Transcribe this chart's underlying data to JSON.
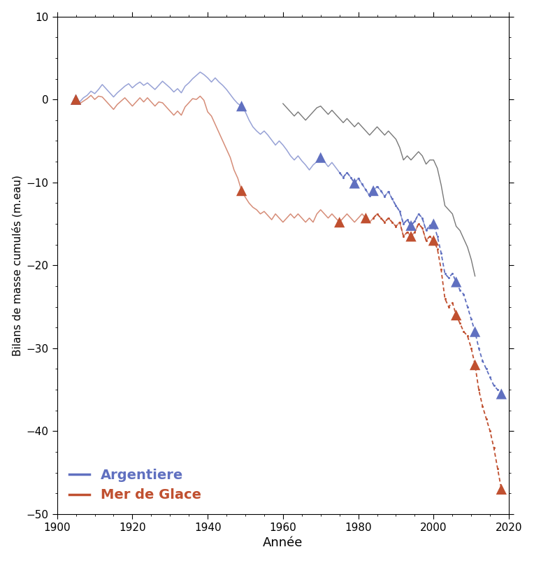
{
  "xlabel": "Année",
  "ylabel": "Bilans de masse cumulés (m.eau)",
  "xlim": [
    1900,
    2020
  ],
  "ylim": [
    -50,
    10
  ],
  "yticks": [
    10,
    0,
    -10,
    -20,
    -30,
    -40,
    -50
  ],
  "xticks": [
    1900,
    1920,
    1940,
    1960,
    1980,
    2000,
    2020
  ],
  "arg_color": "#6070c0",
  "mer_color": "#c05030",
  "gray_color": "#606060",
  "legend_argentiere": "Argentiere",
  "legend_mer": "Mer de Glace",
  "arg_solid_x": [
    1905,
    1906,
    1907,
    1908,
    1909,
    1910,
    1911,
    1912,
    1913,
    1914,
    1915,
    1916,
    1917,
    1918,
    1919,
    1920,
    1921,
    1922,
    1923,
    1924,
    1925,
    1926,
    1927,
    1928,
    1929,
    1930,
    1931,
    1932,
    1933,
    1934,
    1935,
    1936,
    1937,
    1938,
    1939,
    1940,
    1941,
    1942,
    1943,
    1944,
    1945,
    1946,
    1947,
    1948,
    1949,
    1950,
    1951,
    1952,
    1953,
    1954,
    1955,
    1956,
    1957,
    1958,
    1959,
    1960,
    1961,
    1962,
    1963,
    1964,
    1965,
    1966,
    1967,
    1968,
    1969,
    1970,
    1971,
    1972,
    1973,
    1974,
    1975,
    1976,
    1977,
    1978,
    1979,
    1980,
    1981,
    1982,
    1983,
    1984,
    1985,
    1986,
    1987,
    1988,
    1989,
    1990,
    1991,
    1992,
    1993,
    1994,
    1995,
    1996,
    1997,
    1998,
    1999,
    2000
  ],
  "arg_solid_y": [
    0.0,
    -0.3,
    0.2,
    0.5,
    1.0,
    0.7,
    1.2,
    1.8,
    1.3,
    0.8,
    0.3,
    0.8,
    1.2,
    1.6,
    1.9,
    1.4,
    1.8,
    2.1,
    1.7,
    2.0,
    1.6,
    1.2,
    1.7,
    2.2,
    1.8,
    1.4,
    0.9,
    1.3,
    0.8,
    1.6,
    2.0,
    2.5,
    2.9,
    3.3,
    3.0,
    2.6,
    2.1,
    2.6,
    2.1,
    1.7,
    1.2,
    0.6,
    0.0,
    -0.5,
    -0.8,
    -1.5,
    -2.5,
    -3.3,
    -3.8,
    -4.2,
    -3.8,
    -4.3,
    -4.9,
    -5.5,
    -5.0,
    -5.5,
    -6.1,
    -6.8,
    -7.3,
    -6.8,
    -7.4,
    -7.9,
    -8.5,
    -7.9,
    -7.5,
    -7.0,
    -7.5,
    -8.1,
    -7.6,
    -8.2,
    -8.8,
    -9.4,
    -8.8,
    -9.4,
    -10.1,
    -9.5,
    -10.2,
    -10.9,
    -11.6,
    -11.0,
    -10.5,
    -11.0,
    -11.7,
    -11.1,
    -12.0,
    -12.8,
    -13.5,
    -15.0,
    -14.5,
    -15.2,
    -14.7,
    -13.8,
    -14.3,
    -15.8,
    -15.2,
    -15.0
  ],
  "mer_solid_x": [
    1905,
    1906,
    1907,
    1908,
    1909,
    1910,
    1911,
    1912,
    1913,
    1914,
    1915,
    1916,
    1917,
    1918,
    1919,
    1920,
    1921,
    1922,
    1923,
    1924,
    1925,
    1926,
    1927,
    1928,
    1929,
    1930,
    1931,
    1932,
    1933,
    1934,
    1935,
    1936,
    1937,
    1938,
    1939,
    1940,
    1941,
    1942,
    1943,
    1944,
    1945,
    1946,
    1947,
    1948,
    1949,
    1950,
    1951,
    1952,
    1953,
    1954,
    1955,
    1956,
    1957,
    1958,
    1959,
    1960,
    1961,
    1962,
    1963,
    1964,
    1965,
    1966,
    1967,
    1968,
    1969,
    1970,
    1971,
    1972,
    1973,
    1974,
    1975,
    1976,
    1977,
    1978,
    1979,
    1980,
    1981,
    1982,
    1983,
    1984,
    1985,
    1986,
    1987,
    1988,
    1989,
    1990,
    1991,
    1992,
    1993,
    1994,
    1995,
    1996,
    1997,
    1998,
    1999,
    2000
  ],
  "mer_solid_y": [
    0.0,
    -0.5,
    -0.2,
    0.1,
    0.5,
    0.0,
    0.4,
    0.3,
    -0.2,
    -0.7,
    -1.2,
    -0.6,
    -0.2,
    0.2,
    -0.3,
    -0.8,
    -0.3,
    0.2,
    -0.3,
    0.2,
    -0.3,
    -0.8,
    -0.3,
    -0.4,
    -0.9,
    -1.4,
    -1.9,
    -1.4,
    -1.9,
    -0.9,
    -0.4,
    0.1,
    0.0,
    0.4,
    -0.1,
    -1.5,
    -2.0,
    -3.0,
    -4.0,
    -5.0,
    -6.0,
    -7.0,
    -8.5,
    -9.5,
    -11.0,
    -11.8,
    -12.5,
    -13.0,
    -13.3,
    -13.8,
    -13.5,
    -14.0,
    -14.5,
    -13.8,
    -14.3,
    -14.8,
    -14.3,
    -13.8,
    -14.3,
    -13.8,
    -14.3,
    -14.8,
    -14.3,
    -14.8,
    -13.8,
    -13.3,
    -13.8,
    -14.3,
    -13.8,
    -14.3,
    -14.8,
    -14.3,
    -13.8,
    -14.3,
    -14.8,
    -14.3,
    -13.8,
    -14.3,
    -14.8,
    -14.3,
    -13.8,
    -14.3,
    -14.8,
    -14.3,
    -14.8,
    -15.3,
    -14.8,
    -16.5,
    -16.0,
    -16.5,
    -16.0,
    -15.0,
    -15.5,
    -17.0,
    -16.5,
    -17.0
  ],
  "gray_x": [
    1960,
    1961,
    1962,
    1963,
    1964,
    1965,
    1966,
    1967,
    1968,
    1969,
    1970,
    1971,
    1972,
    1973,
    1974,
    1975,
    1976,
    1977,
    1978,
    1979,
    1980,
    1981,
    1982,
    1983,
    1984,
    1985,
    1986,
    1987,
    1988,
    1989,
    1990,
    1991,
    1992,
    1993,
    1994,
    1995,
    1996,
    1997,
    1998,
    1999,
    2000,
    2001,
    2002,
    2003,
    2004,
    2005,
    2006,
    2007,
    2008,
    2009,
    2010,
    2011
  ],
  "gray_y": [
    -0.5,
    -1.0,
    -1.5,
    -2.0,
    -1.5,
    -2.0,
    -2.5,
    -2.0,
    -1.5,
    -1.0,
    -0.8,
    -1.3,
    -1.8,
    -1.3,
    -1.8,
    -2.3,
    -2.8,
    -2.3,
    -2.8,
    -3.3,
    -2.8,
    -3.3,
    -3.8,
    -4.3,
    -3.8,
    -3.3,
    -3.8,
    -4.3,
    -3.8,
    -4.3,
    -4.8,
    -5.8,
    -7.3,
    -6.8,
    -7.3,
    -6.8,
    -6.3,
    -6.8,
    -7.8,
    -7.3,
    -7.3,
    -8.3,
    -10.3,
    -12.8,
    -13.3,
    -13.8,
    -15.3,
    -15.8,
    -16.8,
    -17.8,
    -19.3,
    -21.3
  ],
  "arg_dot_x": [
    1975,
    1976,
    1977,
    1978,
    1979,
    1980,
    1981,
    1982,
    1983,
    1984,
    1985,
    1986,
    1987,
    1988,
    1989,
    1990,
    1991,
    1992,
    1993,
    1994,
    1995,
    1996,
    1997,
    1998,
    1999,
    2000,
    2001,
    2002,
    2003,
    2004,
    2005,
    2006,
    2007,
    2008,
    2009,
    2010,
    2011,
    2012,
    2013,
    2014,
    2015,
    2016,
    2017,
    2018
  ],
  "arg_dot_y": [
    -8.8,
    -9.4,
    -8.8,
    -9.4,
    -10.1,
    -9.5,
    -10.2,
    -10.9,
    -11.6,
    -11.0,
    -10.5,
    -11.0,
    -11.7,
    -11.1,
    -12.0,
    -12.8,
    -13.5,
    -15.0,
    -14.5,
    -15.2,
    -14.7,
    -13.8,
    -14.3,
    -15.8,
    -15.2,
    -15.0,
    -16.5,
    -18.5,
    -21.0,
    -21.5,
    -21.0,
    -22.0,
    -23.0,
    -23.5,
    -25.0,
    -26.5,
    -28.0,
    -30.0,
    -31.5,
    -32.5,
    -33.5,
    -34.5,
    -35.0,
    -35.5
  ],
  "mer_dot_x": [
    1984,
    1985,
    1986,
    1987,
    1988,
    1989,
    1990,
    1991,
    1992,
    1993,
    1994,
    1995,
    1996,
    1997,
    1998,
    1999,
    2000,
    2001,
    2002,
    2003,
    2004,
    2005,
    2006,
    2007,
    2008,
    2009,
    2010,
    2011,
    2012,
    2013,
    2014,
    2015,
    2016,
    2017,
    2018
  ],
  "mer_dot_y": [
    -14.3,
    -13.8,
    -14.3,
    -14.8,
    -14.3,
    -14.8,
    -15.3,
    -14.8,
    -16.5,
    -16.0,
    -16.5,
    -16.0,
    -15.0,
    -15.5,
    -17.0,
    -16.5,
    -17.0,
    -18.0,
    -20.5,
    -24.0,
    -25.0,
    -24.5,
    -26.0,
    -27.0,
    -28.0,
    -28.5,
    -30.0,
    -32.0,
    -35.0,
    -37.0,
    -38.5,
    -40.0,
    -42.0,
    -44.5,
    -47.0
  ],
  "arg_tri_x": [
    1905,
    1949,
    1970,
    1979,
    1984,
    1994,
    2000,
    2006,
    2011,
    2018
  ],
  "arg_tri_y": [
    0.0,
    -0.8,
    -7.0,
    -10.1,
    -11.0,
    -15.2,
    -15.0,
    -22.0,
    -28.0,
    -35.5
  ],
  "mer_tri_x": [
    1905,
    1949,
    1975,
    1982,
    1994,
    2000,
    2006,
    2011,
    2018
  ],
  "mer_tri_y": [
    0.0,
    -11.0,
    -14.8,
    -14.3,
    -16.5,
    -17.0,
    -26.0,
    -32.0,
    -47.0
  ]
}
